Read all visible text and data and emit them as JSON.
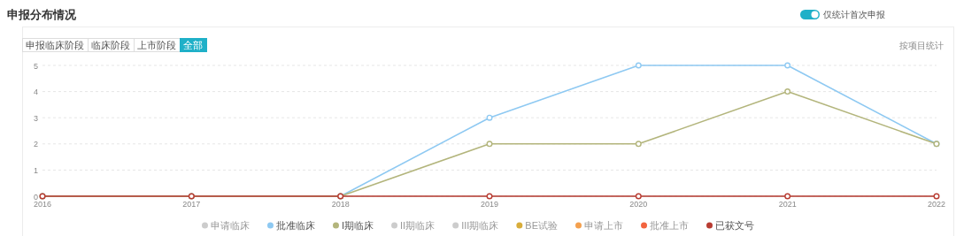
{
  "chart_data": {
    "type": "line",
    "title": "申报分布情况",
    "annotations": [
      "申报临床阶段",
      "临床阶段",
      "上市阶段",
      "全部",
      "仅统计首次申报",
      "按项目统计"
    ],
    "x": [
      "2016",
      "2017",
      "2018",
      "2019",
      "2020",
      "2021",
      "2022"
    ],
    "xlim": [
      "2016",
      "2022"
    ],
    "xticks": [
      "2016",
      "2017",
      "2018",
      "2019",
      "2020",
      "2021",
      "2022"
    ],
    "ylim": [
      0,
      5
    ],
    "yticks": [
      0,
      1,
      2,
      3,
      4,
      5
    ],
    "grid": "y",
    "legend": "bottom",
    "marker": "circle",
    "line_style": "solid",
    "series": [
      {
        "name": "申请临床",
        "color": "#cccccc",
        "values": [
          null,
          null,
          null,
          null,
          null,
          null,
          null
        ]
      },
      {
        "name": "批准临床",
        "color": "#8ec9f2",
        "values": [
          0,
          0,
          0,
          3,
          5,
          5,
          2
        ]
      },
      {
        "name": "I期临床",
        "color": "#b3b57c",
        "values": [
          0,
          0,
          0,
          2,
          2,
          4,
          2
        ]
      },
      {
        "name": "II期临床",
        "color": "#cccccc",
        "values": [
          null,
          null,
          null,
          null,
          null,
          null,
          null
        ]
      },
      {
        "name": "III期临床",
        "color": "#cccccc",
        "values": [
          null,
          null,
          null,
          null,
          null,
          null,
          null
        ]
      },
      {
        "name": "BE试验",
        "color": "#d8ad3b",
        "values": [
          null,
          null,
          null,
          null,
          null,
          null,
          null
        ]
      },
      {
        "name": "申请上市",
        "color": "#f4a04e",
        "values": [
          null,
          null,
          null,
          null,
          null,
          null,
          null
        ]
      },
      {
        "name": "批准上市",
        "color": "#f2643f",
        "values": [
          null,
          null,
          null,
          null,
          null,
          null,
          null
        ]
      },
      {
        "name": "已获文号",
        "color": "#b83c32",
        "values": [
          0,
          0,
          0,
          0,
          0,
          0,
          0
        ]
      }
    ]
  }
}
